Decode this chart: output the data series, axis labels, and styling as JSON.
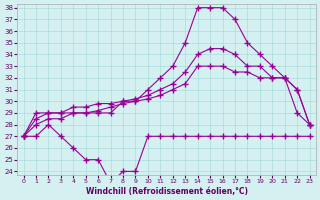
{
  "x": [
    0,
    1,
    2,
    3,
    4,
    5,
    6,
    7,
    8,
    9,
    10,
    11,
    12,
    13,
    14,
    15,
    16,
    17,
    18,
    19,
    20,
    21,
    22,
    23
  ],
  "series1": [
    27,
    29,
    29,
    29,
    29,
    29,
    29,
    29,
    30,
    30,
    31,
    32,
    33,
    35,
    38,
    38,
    38,
    37,
    35,
    34,
    33,
    32,
    29,
    28
  ],
  "series2": [
    27,
    28.5,
    29,
    29,
    29.5,
    29.5,
    29.8,
    29.8,
    30,
    30.2,
    30.5,
    31,
    31.5,
    32.5,
    34,
    34.5,
    34.5,
    34,
    33,
    33,
    32,
    32,
    31,
    28
  ],
  "series3": [
    27,
    28,
    28.5,
    28.5,
    29,
    29,
    29.2,
    29.5,
    29.8,
    30,
    30.2,
    30.5,
    31,
    31.5,
    33,
    33,
    33,
    32.5,
    32.5,
    32,
    32,
    32,
    31,
    28
  ],
  "series4": [
    27,
    27,
    28,
    27,
    26,
    25,
    25,
    23,
    24,
    24,
    27,
    27,
    27,
    27,
    27,
    27,
    27,
    27,
    27,
    27,
    27,
    27,
    27,
    27
  ],
  "xlim": [
    0,
    23
  ],
  "ylim": [
    24,
    38
  ],
  "yticks": [
    24,
    25,
    26,
    27,
    28,
    29,
    30,
    31,
    32,
    33,
    34,
    35,
    36,
    37,
    38
  ],
  "xticks": [
    0,
    1,
    2,
    3,
    4,
    5,
    6,
    7,
    8,
    9,
    10,
    11,
    12,
    13,
    14,
    15,
    16,
    17,
    18,
    19,
    20,
    21,
    22,
    23
  ],
  "xlabel": "Windchill (Refroidissement éolien,°C)",
  "line_color": "#990099",
  "bg_color": "#d4f0f0",
  "grid_color": "#aadddd"
}
